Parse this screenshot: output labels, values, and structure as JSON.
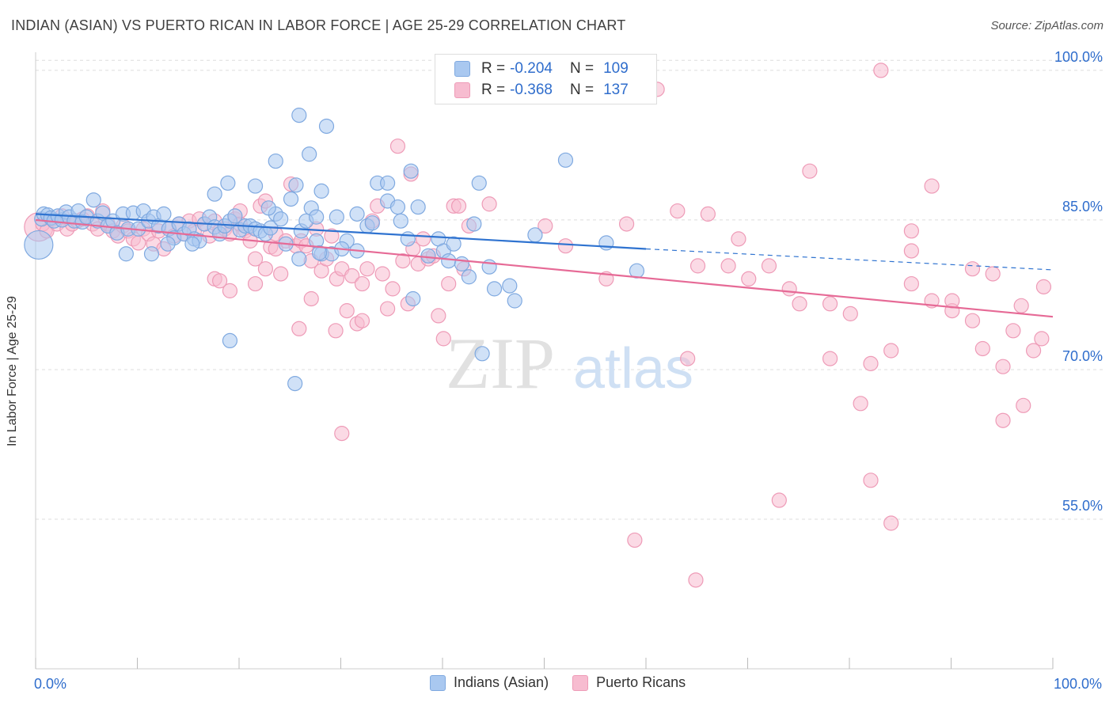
{
  "header": {
    "title": "INDIAN (ASIAN) VS PUERTO RICAN IN LABOR FORCE | AGE 25-29 CORRELATION CHART",
    "source": "Source: ZipAtlas.com"
  },
  "watermark": {
    "part1": "ZIP",
    "part2": "atlas"
  },
  "legend": {
    "rows": [
      {
        "r_label": "R =",
        "r_value": "-0.204",
        "n_label": "N =",
        "n_value": "109"
      },
      {
        "r_label": "R =",
        "r_value": "-0.368",
        "n_label": "N =",
        "n_value": "137"
      }
    ]
  },
  "bottom_legend": {
    "items": [
      "Indians (Asian)",
      "Puerto Ricans"
    ]
  },
  "colors": {
    "blue_fill": "#a9c8f0",
    "blue_stroke": "#7fa9e0",
    "blue_line": "#2f73d0",
    "pink_fill": "#f7bcd0",
    "pink_stroke": "#ee9bb7",
    "pink_line": "#e66a96",
    "axis_text": "#2f6dcc",
    "grid": "#dddddd"
  },
  "chart_data": {
    "type": "scatter",
    "title": "INDIAN (ASIAN) VS PUERTO RICAN IN LABOR FORCE | AGE 25-29 CORRELATION CHART",
    "xlabel": "",
    "ylabel": "In Labor Force | Age 25-29",
    "xlim": [
      0,
      100
    ],
    "ylim": [
      40,
      101.5
    ],
    "x_tick_labels": [
      "0.0%",
      "100.0%"
    ],
    "y_ticks": [
      55,
      70,
      85,
      100
    ],
    "y_tick_labels": [
      "55.0%",
      "70.0%",
      "85.0%",
      "100.0%"
    ],
    "grid": true,
    "legend_position": "top-center",
    "series": [
      {
        "name": "Indians (Asian)",
        "r": -0.204,
        "n": 109,
        "trend": {
          "x0": 0,
          "y0": 85.6,
          "x1": 60,
          "y1": 82.1,
          "dashed_to_x": 100,
          "dashed_to_y": 80.0
        },
        "points": [
          [
            0.3,
            82.5
          ],
          [
            0.6,
            85.1
          ],
          [
            0.8,
            85.6
          ],
          [
            1.2,
            85.5
          ],
          [
            1.5,
            85.2
          ],
          [
            1.8,
            84.9
          ],
          [
            2.2,
            85.4
          ],
          [
            2.6,
            85.0
          ],
          [
            3.0,
            85.8
          ],
          [
            3.3,
            85.3
          ],
          [
            3.8,
            84.9
          ],
          [
            4.2,
            85.9
          ],
          [
            4.6,
            84.8
          ],
          [
            5.0,
            85.3
          ],
          [
            5.7,
            87.0
          ],
          [
            6.1,
            84.9
          ],
          [
            6.6,
            85.7
          ],
          [
            7.1,
            84.4
          ],
          [
            7.6,
            84.9
          ],
          [
            8.0,
            83.7
          ],
          [
            8.6,
            85.6
          ],
          [
            9.1,
            84.1
          ],
          [
            9.6,
            85.7
          ],
          [
            10.1,
            84.1
          ],
          [
            10.6,
            85.9
          ],
          [
            11.1,
            84.9
          ],
          [
            11.6,
            85.3
          ],
          [
            12.1,
            84.4
          ],
          [
            12.6,
            85.6
          ],
          [
            13.1,
            84.1
          ],
          [
            13.6,
            83.2
          ],
          [
            14.1,
            84.6
          ],
          [
            14.6,
            83.6
          ],
          [
            15.1,
            84.1
          ],
          [
            15.6,
            83.1
          ],
          [
            16.1,
            82.9
          ],
          [
            16.6,
            84.6
          ],
          [
            17.1,
            85.3
          ],
          [
            17.6,
            84.3
          ],
          [
            18.1,
            83.6
          ],
          [
            18.6,
            84.4
          ],
          [
            19.1,
            84.9
          ],
          [
            19.6,
            85.4
          ],
          [
            20.1,
            84.0
          ],
          [
            20.6,
            84.4
          ],
          [
            21.1,
            84.4
          ],
          [
            21.6,
            84.1
          ],
          [
            22.1,
            83.9
          ],
          [
            22.6,
            83.6
          ],
          [
            23.1,
            84.2
          ],
          [
            23.6,
            85.6
          ],
          [
            24.1,
            85.1
          ],
          [
            24.6,
            82.6
          ],
          [
            25.1,
            87.1
          ],
          [
            25.6,
            88.5
          ],
          [
            26.1,
            83.9
          ],
          [
            26.6,
            84.9
          ],
          [
            27.1,
            86.2
          ],
          [
            27.6,
            85.3
          ],
          [
            28.1,
            87.9
          ],
          [
            8.9,
            81.6
          ],
          [
            11.4,
            81.6
          ],
          [
            13.0,
            82.6
          ],
          [
            15.4,
            82.6
          ],
          [
            17.6,
            87.6
          ],
          [
            18.9,
            88.7
          ],
          [
            21.6,
            88.4
          ],
          [
            22.9,
            86.2
          ],
          [
            23.6,
            90.9
          ],
          [
            25.9,
            95.5
          ],
          [
            26.9,
            91.6
          ],
          [
            28.6,
            94.4
          ],
          [
            29.6,
            85.3
          ],
          [
            30.6,
            82.9
          ],
          [
            31.6,
            85.6
          ],
          [
            32.6,
            84.4
          ],
          [
            33.6,
            88.7
          ],
          [
            34.6,
            86.9
          ],
          [
            35.6,
            86.3
          ],
          [
            36.6,
            83.1
          ],
          [
            25.9,
            81.1
          ],
          [
            27.6,
            82.9
          ],
          [
            28.1,
            81.6
          ],
          [
            29.1,
            81.6
          ],
          [
            30.1,
            82.1
          ],
          [
            31.6,
            81.9
          ],
          [
            34.6,
            88.7
          ],
          [
            36.9,
            89.9
          ],
          [
            37.6,
            86.3
          ],
          [
            38.6,
            81.4
          ],
          [
            39.6,
            83.1
          ],
          [
            40.1,
            81.9
          ],
          [
            40.6,
            80.9
          ],
          [
            41.1,
            82.6
          ],
          [
            42.6,
            79.3
          ],
          [
            43.1,
            84.6
          ],
          [
            43.6,
            88.7
          ],
          [
            44.6,
            80.3
          ],
          [
            45.1,
            78.1
          ],
          [
            46.6,
            78.4
          ],
          [
            47.1,
            76.9
          ],
          [
            49.1,
            83.5
          ],
          [
            52.1,
            91.0
          ],
          [
            56.1,
            82.7
          ],
          [
            59.1,
            79.9
          ],
          [
            37.1,
            77.1
          ],
          [
            41.9,
            80.6
          ],
          [
            43.9,
            71.6
          ],
          [
            25.5,
            68.6
          ],
          [
            19.1,
            72.9
          ],
          [
            27.9,
            81.7
          ],
          [
            35.9,
            84.9
          ],
          [
            33.1,
            84.7
          ]
        ]
      },
      {
        "name": "Puerto Ricans",
        "r": -0.368,
        "n": 137,
        "trend": {
          "x0": 0,
          "y0": 85.0,
          "x1": 100,
          "y1": 75.3
        },
        "points": [
          [
            0.3,
            84.3
          ],
          [
            0.7,
            84.6
          ],
          [
            1.1,
            83.9
          ],
          [
            1.6,
            85.1
          ],
          [
            2.1,
            84.6
          ],
          [
            2.6,
            85.4
          ],
          [
            3.1,
            84.1
          ],
          [
            3.6,
            84.6
          ],
          [
            4.1,
            84.9
          ],
          [
            4.6,
            85.1
          ],
          [
            5.1,
            85.4
          ],
          [
            5.6,
            84.6
          ],
          [
            6.1,
            84.1
          ],
          [
            6.6,
            85.9
          ],
          [
            7.1,
            84.6
          ],
          [
            7.6,
            83.9
          ],
          [
            8.1,
            83.4
          ],
          [
            8.6,
            84.4
          ],
          [
            9.1,
            83.9
          ],
          [
            9.6,
            83.1
          ],
          [
            10.1,
            82.7
          ],
          [
            10.6,
            84.1
          ],
          [
            11.1,
            83.6
          ],
          [
            11.6,
            82.6
          ],
          [
            12.1,
            83.9
          ],
          [
            12.6,
            82.1
          ],
          [
            13.1,
            84.1
          ],
          [
            13.6,
            83.4
          ],
          [
            14.1,
            84.6
          ],
          [
            14.6,
            83.6
          ],
          [
            15.1,
            84.9
          ],
          [
            15.6,
            83.9
          ],
          [
            16.1,
            85.1
          ],
          [
            16.6,
            84.6
          ],
          [
            17.1,
            83.4
          ],
          [
            17.6,
            84.9
          ],
          [
            18.1,
            83.9
          ],
          [
            18.6,
            84.1
          ],
          [
            19.1,
            83.6
          ],
          [
            19.6,
            85.1
          ],
          [
            20.1,
            84.6
          ],
          [
            20.6,
            83.9
          ],
          [
            21.1,
            82.9
          ],
          [
            21.6,
            81.1
          ],
          [
            22.1,
            86.4
          ],
          [
            22.6,
            80.1
          ],
          [
            23.1,
            82.3
          ],
          [
            23.6,
            83.6
          ],
          [
            24.1,
            79.6
          ],
          [
            24.6,
            82.9
          ],
          [
            17.6,
            79.1
          ],
          [
            18.1,
            78.9
          ],
          [
            19.1,
            77.9
          ],
          [
            20.1,
            85.9
          ],
          [
            21.6,
            78.6
          ],
          [
            22.6,
            86.9
          ],
          [
            23.6,
            82.1
          ],
          [
            25.1,
            88.6
          ],
          [
            25.6,
            82.4
          ],
          [
            26.1,
            82.9
          ],
          [
            26.6,
            82.4
          ],
          [
            27.1,
            80.9
          ],
          [
            27.6,
            84.1
          ],
          [
            28.1,
            79.9
          ],
          [
            28.6,
            81.1
          ],
          [
            29.1,
            83.4
          ],
          [
            29.6,
            79.1
          ],
          [
            30.1,
            80.1
          ],
          [
            30.6,
            75.9
          ],
          [
            31.1,
            79.4
          ],
          [
            31.6,
            74.6
          ],
          [
            32.1,
            78.6
          ],
          [
            32.6,
            80.1
          ],
          [
            33.1,
            84.9
          ],
          [
            33.6,
            86.4
          ],
          [
            34.1,
            79.6
          ],
          [
            34.6,
            76.1
          ],
          [
            35.1,
            78.1
          ],
          [
            35.6,
            92.4
          ],
          [
            36.1,
            80.9
          ],
          [
            36.6,
            76.6
          ],
          [
            37.1,
            82.1
          ],
          [
            37.6,
            80.6
          ],
          [
            38.1,
            83.1
          ],
          [
            38.6,
            81.1
          ],
          [
            39.1,
            81.4
          ],
          [
            39.6,
            75.4
          ],
          [
            40.1,
            73.1
          ],
          [
            40.6,
            78.6
          ],
          [
            41.1,
            86.4
          ],
          [
            41.6,
            86.4
          ],
          [
            42.1,
            80.1
          ],
          [
            42.6,
            84.4
          ],
          [
            44.6,
            86.6
          ],
          [
            25.9,
            74.1
          ],
          [
            27.1,
            77.1
          ],
          [
            29.5,
            73.9
          ],
          [
            30.1,
            63.6
          ],
          [
            36.9,
            89.6
          ],
          [
            32.1,
            74.9
          ],
          [
            46.1,
            100.0
          ],
          [
            50.1,
            84.4
          ],
          [
            52.1,
            82.4
          ],
          [
            54.1,
            100.0
          ],
          [
            56.1,
            79.1
          ],
          [
            58.1,
            84.6
          ],
          [
            61.1,
            98.1
          ],
          [
            63.1,
            85.9
          ],
          [
            65.1,
            80.4
          ],
          [
            66.1,
            85.6
          ],
          [
            68.1,
            80.4
          ],
          [
            70.1,
            79.1
          ],
          [
            72.1,
            80.4
          ],
          [
            74.1,
            78.1
          ],
          [
            76.1,
            89.9
          ],
          [
            78.1,
            76.6
          ],
          [
            80.1,
            75.6
          ],
          [
            82.1,
            70.6
          ],
          [
            84.1,
            71.9
          ],
          [
            86.1,
            83.9
          ],
          [
            88.1,
            76.9
          ],
          [
            90.1,
            75.9
          ],
          [
            92.1,
            74.9
          ],
          [
            93.1,
            72.1
          ],
          [
            94.1,
            79.6
          ],
          [
            95.1,
            70.3
          ],
          [
            96.1,
            73.9
          ],
          [
            97.1,
            66.4
          ],
          [
            98.1,
            71.9
          ],
          [
            99.1,
            78.3
          ],
          [
            75.1,
            76.6
          ],
          [
            78.1,
            71.1
          ],
          [
            81.1,
            66.6
          ],
          [
            83.1,
            100.0
          ],
          [
            84.1,
            54.6
          ],
          [
            86.1,
            81.9
          ],
          [
            88.1,
            88.4
          ],
          [
            90.1,
            76.9
          ],
          [
            92.1,
            80.1
          ],
          [
            95.1,
            64.9
          ],
          [
            64.1,
            71.1
          ],
          [
            69.1,
            83.1
          ],
          [
            73.1,
            56.9
          ],
          [
            58.9,
            52.9
          ],
          [
            64.9,
            48.9
          ],
          [
            82.1,
            58.9
          ],
          [
            96.9,
            76.4
          ],
          [
            98.9,
            73.1
          ],
          [
            86.1,
            78.6
          ]
        ]
      }
    ]
  }
}
